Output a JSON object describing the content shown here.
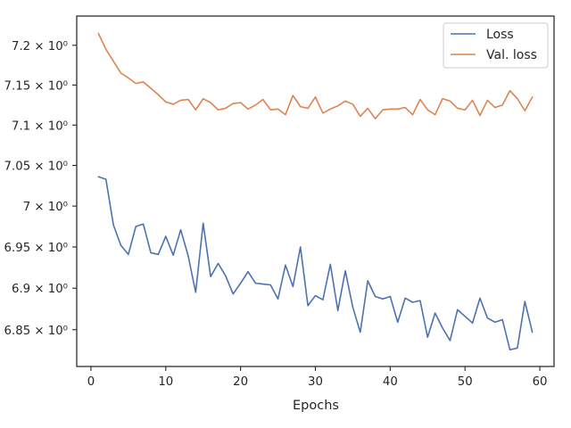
{
  "chart_data": {
    "type": "line",
    "title": "",
    "xlabel": "Epochs",
    "ylabel": "",
    "xlim": [
      -1.9,
      61.9
    ],
    "ylim": [
      6.806,
      7.237
    ],
    "x_ticks": [
      0,
      10,
      20,
      30,
      40,
      50,
      60
    ],
    "x_tick_labels": [
      "0",
      "10",
      "20",
      "30",
      "40",
      "50",
      "60"
    ],
    "y_ticks": [
      6.85,
      6.9,
      6.95,
      7.0,
      7.05,
      7.1,
      7.15,
      7.2
    ],
    "y_tick_labels": [
      "6.85 × 10⁰",
      "6.9 × 10⁰",
      "6.95 × 10⁰",
      "7 × 10⁰",
      "7.05 × 10⁰",
      "7.1 × 10⁰",
      "7.15 × 10⁰",
      "7.2 × 10⁰"
    ],
    "grid": false,
    "y_scale": "log",
    "legend_position": "top-right",
    "x": [
      1,
      2,
      3,
      4,
      5,
      6,
      7,
      8,
      9,
      10,
      11,
      12,
      13,
      14,
      15,
      16,
      17,
      18,
      19,
      20,
      21,
      22,
      23,
      24,
      25,
      26,
      27,
      28,
      29,
      30,
      31,
      32,
      33,
      34,
      35,
      36,
      37,
      38,
      39,
      40,
      41,
      42,
      43,
      44,
      45,
      46,
      47,
      48,
      49,
      50,
      51,
      52,
      53,
      54,
      55,
      56,
      57,
      58,
      59
    ],
    "series": [
      {
        "name": "Loss",
        "color": "#4c72b0",
        "values": [
          7.036,
          7.033,
          6.977,
          6.952,
          6.941,
          6.975,
          6.978,
          6.943,
          6.941,
          6.963,
          6.94,
          6.971,
          6.939,
          6.895,
          6.979,
          6.914,
          6.93,
          6.915,
          6.893,
          6.906,
          6.92,
          6.906,
          6.905,
          6.904,
          6.887,
          6.928,
          6.902,
          6.95,
          6.879,
          6.891,
          6.886,
          6.929,
          6.873,
          6.921,
          6.877,
          6.847,
          6.909,
          6.89,
          6.887,
          6.89,
          6.859,
          6.888,
          6.883,
          6.885,
          6.841,
          6.87,
          6.852,
          6.837,
          6.874,
          6.866,
          6.858,
          6.888,
          6.864,
          6.859,
          6.862,
          6.826,
          6.828,
          6.884,
          6.847
        ]
      },
      {
        "name": "Val. loss",
        "color": "#dd8452",
        "values": [
          7.215,
          7.195,
          7.18,
          7.165,
          7.159,
          7.152,
          7.154,
          7.146,
          7.138,
          7.129,
          7.126,
          7.131,
          7.132,
          7.119,
          7.133,
          7.128,
          7.119,
          7.121,
          7.127,
          7.128,
          7.12,
          7.125,
          7.132,
          7.119,
          7.12,
          7.113,
          7.137,
          7.123,
          7.121,
          7.135,
          7.115,
          7.12,
          7.124,
          7.13,
          7.126,
          7.111,
          7.121,
          7.108,
          7.119,
          7.12,
          7.12,
          7.122,
          7.113,
          7.132,
          7.119,
          7.113,
          7.133,
          7.13,
          7.121,
          7.119,
          7.131,
          7.112,
          7.131,
          7.122,
          7.125,
          7.143,
          7.133,
          7.118,
          7.135
        ]
      }
    ]
  }
}
